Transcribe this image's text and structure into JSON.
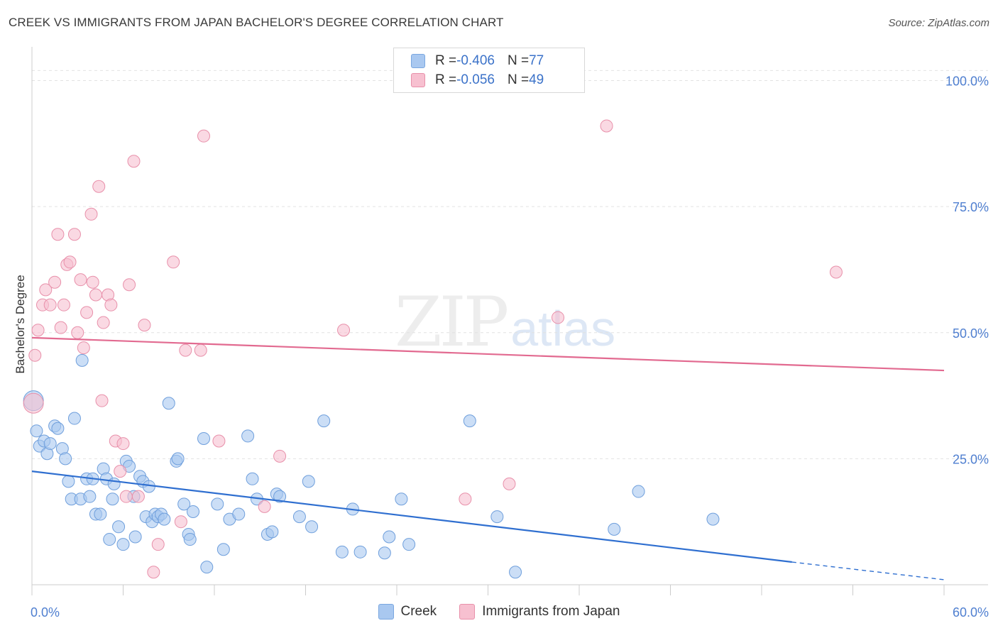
{
  "title": "CREEK VS IMMIGRANTS FROM JAPAN BACHELOR'S DEGREE CORRELATION CHART",
  "source": "Source: ZipAtlas.com",
  "watermark": {
    "zip": "ZIP",
    "atlas": "atlas"
  },
  "legend_top": [
    {
      "r_label": "R = ",
      "r_value": "-0.406",
      "n_label": "N = ",
      "n_value": "77",
      "color": "#a9c8f0",
      "border": "#7aa7e0"
    },
    {
      "r_label": "R = ",
      "r_value": "-0.056",
      "n_label": "N = ",
      "n_value": "49",
      "color": "#f7c0d0",
      "border": "#e890aa"
    }
  ],
  "legend_bottom": [
    {
      "label": "Creek",
      "color": "#a9c8f0",
      "border": "#7aa7e0"
    },
    {
      "label": "Immigrants from Japan",
      "color": "#f7c0d0",
      "border": "#e890aa"
    }
  ],
  "chart_data": {
    "type": "scatter",
    "title": "CREEK VS IMMIGRANTS FROM JAPAN BACHELOR'S DEGREE CORRELATION CHART",
    "xlabel": "",
    "ylabel": "Bachelor's Degree",
    "xlim": [
      0,
      60
    ],
    "ylim": [
      0,
      105
    ],
    "x_tick_labels": [
      "0.0%",
      "60.0%"
    ],
    "y_ticks": [
      25,
      50,
      75,
      100
    ],
    "y_tick_labels": [
      "25.0%",
      "50.0%",
      "75.0%",
      "100.0%"
    ],
    "grid": true,
    "series": [
      {
        "name": "Creek",
        "color": "#a9c8f0",
        "stroke": "#6f9fdc",
        "line_color": "#2f6fd0",
        "trend": {
          "x0": 0,
          "y0": 22.5,
          "x1": 50,
          "y1": 4.5,
          "dashed_to_x": 60,
          "dashed_to_y": 1.0
        },
        "points": [
          [
            0.3,
            30.5
          ],
          [
            0.5,
            27.5
          ],
          [
            0.8,
            28.5
          ],
          [
            1.0,
            26.0
          ],
          [
            1.2,
            28.0
          ],
          [
            1.5,
            31.5
          ],
          [
            1.7,
            31.0
          ],
          [
            2.0,
            27.0
          ],
          [
            2.2,
            25.0
          ],
          [
            2.4,
            20.5
          ],
          [
            2.6,
            17.0
          ],
          [
            2.8,
            33.0
          ],
          [
            3.2,
            17.0
          ],
          [
            3.3,
            44.5
          ],
          [
            3.6,
            21.0
          ],
          [
            3.8,
            17.5
          ],
          [
            4.0,
            21.0
          ],
          [
            4.2,
            14.0
          ],
          [
            4.5,
            14.0
          ],
          [
            4.7,
            23.0
          ],
          [
            4.9,
            21.0
          ],
          [
            5.1,
            9.0
          ],
          [
            5.3,
            17.0
          ],
          [
            5.4,
            20.0
          ],
          [
            5.7,
            11.5
          ],
          [
            6.0,
            8.0
          ],
          [
            6.2,
            24.5
          ],
          [
            6.4,
            23.5
          ],
          [
            6.7,
            17.5
          ],
          [
            6.8,
            9.5
          ],
          [
            7.1,
            21.5
          ],
          [
            7.3,
            20.5
          ],
          [
            7.5,
            13.5
          ],
          [
            7.7,
            19.5
          ],
          [
            7.9,
            12.5
          ],
          [
            8.1,
            14.0
          ],
          [
            8.3,
            13.5
          ],
          [
            8.5,
            14.0
          ],
          [
            8.7,
            13.0
          ],
          [
            9.0,
            36.0
          ],
          [
            9.5,
            24.5
          ],
          [
            9.6,
            25.0
          ],
          [
            10.0,
            16.0
          ],
          [
            10.3,
            10.0
          ],
          [
            10.4,
            9.0
          ],
          [
            10.6,
            14.5
          ],
          [
            11.3,
            29.0
          ],
          [
            11.5,
            3.5
          ],
          [
            12.2,
            16.0
          ],
          [
            12.6,
            7.0
          ],
          [
            13.0,
            13.0
          ],
          [
            13.6,
            14.0
          ],
          [
            14.2,
            29.5
          ],
          [
            14.5,
            21.0
          ],
          [
            14.8,
            17.0
          ],
          [
            15.5,
            10.0
          ],
          [
            15.8,
            10.5
          ],
          [
            16.1,
            18.0
          ],
          [
            16.3,
            17.5
          ],
          [
            17.6,
            13.5
          ],
          [
            18.2,
            20.5
          ],
          [
            18.4,
            11.5
          ],
          [
            19.2,
            32.5
          ],
          [
            20.4,
            6.5
          ],
          [
            21.1,
            15.0
          ],
          [
            21.6,
            6.5
          ],
          [
            23.2,
            6.3
          ],
          [
            23.5,
            9.5
          ],
          [
            24.3,
            17.0
          ],
          [
            24.8,
            8.0
          ],
          [
            28.8,
            32.5
          ],
          [
            30.6,
            13.5
          ],
          [
            31.8,
            2.5
          ],
          [
            38.3,
            11.0
          ],
          [
            39.9,
            18.5
          ],
          [
            44.8,
            13.0
          ],
          [
            0.1,
            36.5
          ]
        ]
      },
      {
        "name": "Immigrants from Japan",
        "color": "#f7c0d0",
        "stroke": "#e890aa",
        "line_color": "#e26a90",
        "trend": {
          "x0": 0,
          "y0": 49.0,
          "x1": 60,
          "y1": 42.5
        },
        "points": [
          [
            0.2,
            45.5
          ],
          [
            0.4,
            50.5
          ],
          [
            0.7,
            55.5
          ],
          [
            0.9,
            58.5
          ],
          [
            1.2,
            55.5
          ],
          [
            1.5,
            60.0
          ],
          [
            1.7,
            69.5
          ],
          [
            1.9,
            51.0
          ],
          [
            2.1,
            55.5
          ],
          [
            2.3,
            63.5
          ],
          [
            2.5,
            64.0
          ],
          [
            2.8,
            69.5
          ],
          [
            3.0,
            50.0
          ],
          [
            3.2,
            60.5
          ],
          [
            3.4,
            47.0
          ],
          [
            3.6,
            54.0
          ],
          [
            3.9,
            73.5
          ],
          [
            4.0,
            60.0
          ],
          [
            4.2,
            57.5
          ],
          [
            4.4,
            79.0
          ],
          [
            4.6,
            36.5
          ],
          [
            4.7,
            52.0
          ],
          [
            5.0,
            57.5
          ],
          [
            5.2,
            55.5
          ],
          [
            5.5,
            28.5
          ],
          [
            5.8,
            22.5
          ],
          [
            6.0,
            28.0
          ],
          [
            6.2,
            17.5
          ],
          [
            6.4,
            59.5
          ],
          [
            6.7,
            84.0
          ],
          [
            7.0,
            17.5
          ],
          [
            7.4,
            51.5
          ],
          [
            8.0,
            2.5
          ],
          [
            8.3,
            8.0
          ],
          [
            9.3,
            64.0
          ],
          [
            9.8,
            12.5
          ],
          [
            10.1,
            46.5
          ],
          [
            11.1,
            46.5
          ],
          [
            11.3,
            89.0
          ],
          [
            12.3,
            28.5
          ],
          [
            15.3,
            15.5
          ],
          [
            16.3,
            25.5
          ],
          [
            20.5,
            50.5
          ],
          [
            28.5,
            17.0
          ],
          [
            31.4,
            20.0
          ],
          [
            34.6,
            53.0
          ],
          [
            37.8,
            91.0
          ],
          [
            52.9,
            62.0
          ],
          [
            0.1,
            36.0
          ]
        ]
      }
    ]
  }
}
